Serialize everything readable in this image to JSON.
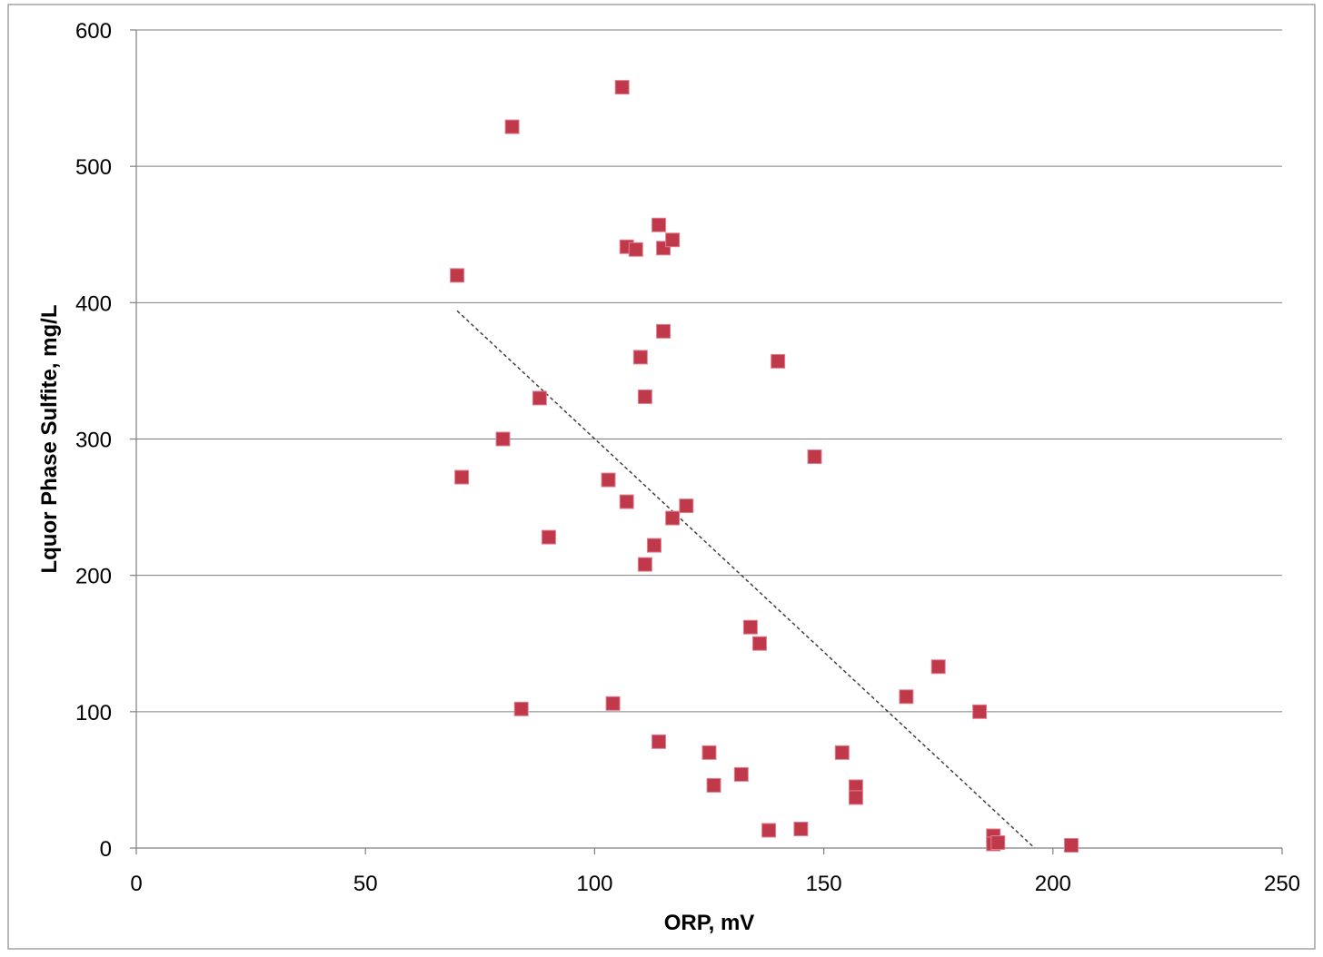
{
  "chart_data": {
    "type": "scatter",
    "title": "",
    "xlabel": "ORP, mV",
    "ylabel": "Lquor Phase Sulfite, mg/L",
    "xlim": [
      0,
      250
    ],
    "ylim": [
      0,
      600
    ],
    "x_ticks": [
      0,
      50,
      100,
      150,
      200,
      250
    ],
    "y_ticks": [
      0,
      100,
      200,
      300,
      400,
      500,
      600
    ],
    "grid": "horizontal major gridlines",
    "legend": "none",
    "marker": "square",
    "marker_color": "#C0394A",
    "marker_edge_color": "#E08090",
    "series": [
      {
        "points": [
          [
            70,
            420
          ],
          [
            71,
            272
          ],
          [
            80,
            300
          ],
          [
            82,
            529
          ],
          [
            84,
            102
          ],
          [
            88,
            330
          ],
          [
            90,
            228
          ],
          [
            103,
            270
          ],
          [
            104,
            106
          ],
          [
            106,
            558
          ],
          [
            107,
            441
          ],
          [
            107,
            254
          ],
          [
            109,
            439
          ],
          [
            110,
            360
          ],
          [
            111,
            331
          ],
          [
            111,
            208
          ],
          [
            113,
            222
          ],
          [
            114,
            457
          ],
          [
            114,
            78
          ],
          [
            115,
            440
          ],
          [
            115,
            379
          ],
          [
            117,
            446
          ],
          [
            117,
            242
          ],
          [
            120,
            251
          ],
          [
            125,
            70
          ],
          [
            126,
            46
          ],
          [
            132,
            54
          ],
          [
            134,
            162
          ],
          [
            136,
            150
          ],
          [
            138,
            13
          ],
          [
            140,
            357
          ],
          [
            145,
            14
          ],
          [
            148,
            287
          ],
          [
            154,
            70
          ],
          [
            157,
            45
          ],
          [
            157,
            37
          ],
          [
            168,
            111
          ],
          [
            175,
            133
          ],
          [
            184,
            100
          ],
          [
            187,
            9
          ],
          [
            187,
            3
          ],
          [
            188,
            4
          ],
          [
            204,
            2
          ]
        ]
      }
    ],
    "trendline": {
      "type": "linear",
      "style": "dotted",
      "color": "#404040",
      "points": [
        [
          70,
          394
        ],
        [
          196,
          0
        ]
      ]
    }
  }
}
